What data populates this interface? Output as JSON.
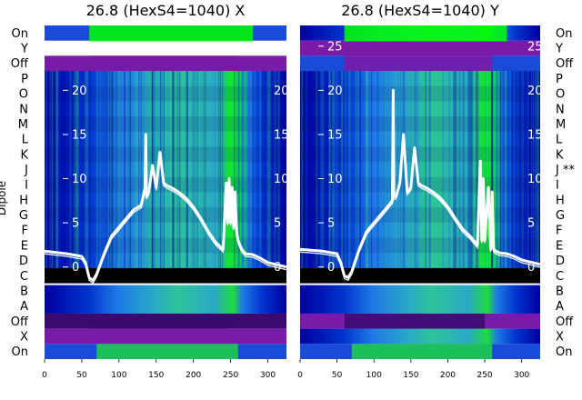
{
  "chart_data": {
    "type": "heatmap",
    "ylabel": "Dipole",
    "row_labels_left": [
      "On",
      "Y",
      "Off",
      "P",
      "O",
      "N",
      "M",
      "L",
      "K",
      "J",
      "I",
      "H",
      "G",
      "F",
      "E",
      "D",
      "C",
      "B",
      "A",
      "Off",
      "X",
      "On"
    ],
    "row_labels_right": [
      "On",
      "Y",
      "Off",
      "P",
      "O",
      "N",
      "M",
      "L",
      "K",
      "J **",
      "I",
      "H",
      "G",
      "F",
      "E",
      "D",
      "C",
      "B",
      "A",
      "Off",
      "X",
      "On"
    ],
    "x_ticks": [
      0,
      50,
      100,
      150,
      200,
      250,
      300
    ],
    "x_range": [
      0,
      325
    ],
    "overlay_ticks": [
      0,
      5,
      10,
      15,
      20,
      25
    ],
    "overlay_range": [
      -1.5,
      27
    ],
    "colormap": [
      "#0000a0",
      "#0033cc",
      "#1e78e6",
      "#2aa8c8",
      "#2dc49a",
      "#1edc3c",
      "#00ff00",
      "#3a0a6e",
      "#7a1aa8",
      "#000000"
    ],
    "panels": [
      {
        "title": "26.8 (HexS4=1040) X",
        "curve": {
          "x": [
            0,
            30,
            50,
            55,
            60,
            65,
            70,
            80,
            90,
            100,
            110,
            120,
            130,
            135,
            136,
            137,
            140,
            145,
            150,
            155,
            160,
            165,
            170,
            180,
            190,
            200,
            210,
            220,
            230,
            240,
            244,
            246,
            248,
            250,
            252,
            254,
            256,
            258,
            260,
            265,
            270,
            280,
            290,
            300,
            325
          ],
          "y": [
            1.8,
            1.5,
            1.2,
            0.5,
            -1.2,
            -1.5,
            -0.8,
            1.5,
            3.5,
            4.5,
            5.5,
            6.5,
            7.0,
            9.0,
            15.0,
            8.0,
            8.5,
            11.5,
            9.0,
            13.0,
            9.5,
            9.2,
            9.0,
            8.5,
            7.8,
            6.8,
            5.5,
            4.0,
            2.8,
            2.0,
            9.5,
            5.0,
            10.0,
            5.0,
            9.0,
            4.5,
            8.5,
            4.0,
            3.0,
            2.0,
            1.5,
            1.4,
            1.0,
            0.5,
            0.0
          ]
        },
        "bands": [
          {
            "rows": [
              0,
              1
            ],
            "color": "#1a4bd8"
          },
          {
            "rows": [
              2,
              3
            ],
            "color": "#7a1aa8"
          },
          {
            "rows": [
              3,
              16
            ],
            "color": "#0022b8"
          },
          {
            "rows": [
              16,
              17
            ],
            "color": "#000000"
          },
          {
            "rows": [
              17,
              19
            ],
            "color": "#1e78e6"
          },
          {
            "rows": [
              19,
              20
            ],
            "color": "#3a0a6e"
          },
          {
            "rows": [
              20,
              21
            ],
            "color": "#7a1aa8"
          },
          {
            "rows": [
              21,
              22
            ],
            "color": "#1a4bd8"
          }
        ]
      },
      {
        "title": "26.8 (HexS4=1040) Y",
        "curve": {
          "x": [
            0,
            30,
            50,
            55,
            60,
            65,
            70,
            80,
            90,
            100,
            110,
            120,
            125,
            126,
            127,
            130,
            135,
            140,
            145,
            150,
            155,
            160,
            165,
            170,
            180,
            190,
            200,
            210,
            220,
            230,
            240,
            244,
            246,
            248,
            250,
            255,
            258,
            260,
            262,
            265,
            270,
            280,
            290,
            300,
            325
          ],
          "y": [
            2.0,
            1.8,
            1.5,
            0.5,
            -1.0,
            -1.2,
            -0.5,
            2.0,
            4.0,
            5.0,
            6.0,
            7.0,
            7.5,
            20.0,
            8.0,
            8.0,
            9.5,
            15.0,
            8.5,
            9.0,
            13.5,
            9.5,
            9.2,
            9.0,
            8.5,
            7.8,
            6.8,
            5.5,
            4.3,
            3.5,
            2.5,
            12.0,
            3.0,
            10.0,
            3.0,
            9.0,
            2.0,
            8.5,
            2.0,
            1.8,
            1.6,
            1.5,
            1.2,
            0.8,
            0.3
          ]
        },
        "bands": [
          {
            "rows": [
              0,
              1
            ],
            "color": "#2aa8c8"
          },
          {
            "rows": [
              1,
              2
            ],
            "color": "#7a1aa8"
          },
          {
            "rows": [
              2,
              3
            ],
            "color": "#1a4bd8"
          },
          {
            "rows": [
              3,
              16
            ],
            "color": "#0022b8"
          },
          {
            "rows": [
              16,
              17
            ],
            "color": "#000000"
          },
          {
            "rows": [
              17,
              19
            ],
            "color": "#1e78e6"
          },
          {
            "rows": [
              19,
              20
            ],
            "color": "#7a1aa8"
          },
          {
            "rows": [
              20,
              21
            ],
            "color": "#1e78e6"
          },
          {
            "rows": [
              21,
              22
            ],
            "color": "#1a4bd8"
          }
        ]
      }
    ]
  }
}
